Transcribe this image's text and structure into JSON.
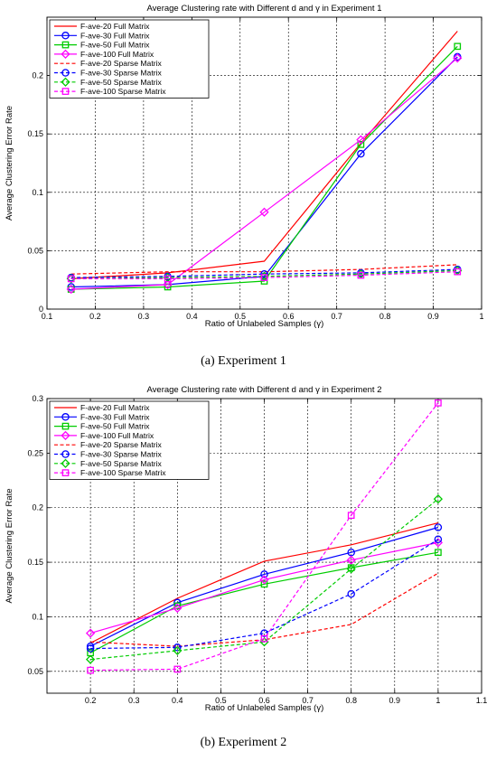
{
  "chart_data": [
    {
      "type": "line",
      "title": "Average Clustering rate with Different d and γ in Experiment 1",
      "xlabel": "Ratio of Unlabeled Samples (γ)",
      "ylabel": "Average Clustering Error Rate",
      "xlim": [
        0.1,
        1
      ],
      "ylim": [
        0,
        0.25
      ],
      "xticks": [
        0.1,
        0.2,
        0.3,
        0.4,
        0.5,
        0.6,
        0.7,
        0.8,
        0.9,
        1
      ],
      "xtick_labels": [
        "0.1",
        "0.2",
        "0.3",
        "0.4",
        "0.5",
        "0.6",
        "0.7",
        "0.8",
        "0.9",
        "1"
      ],
      "yticks": [
        0,
        0.05,
        0.1,
        0.15,
        0.2
      ],
      "ytick_labels": [
        "0",
        "0.05",
        "0.1",
        "0.15",
        "0.2"
      ],
      "grid": true,
      "legend_position": "top-left",
      "caption": "(a) Experiment 1",
      "x": [
        0.15,
        0.35,
        0.55,
        0.75,
        0.95
      ],
      "series": [
        {
          "name": "F-ave-20 Full Matrix",
          "color": "#ff0000",
          "dash": "solid",
          "marker": "none",
          "values": [
            0.026,
            0.031,
            0.041,
            0.142,
            0.238
          ]
        },
        {
          "name": "F-ave-30 Full Matrix",
          "color": "#0000ff",
          "dash": "solid",
          "marker": "circle",
          "values": [
            0.019,
            0.021,
            0.028,
            0.133,
            0.216
          ]
        },
        {
          "name": "F-ave-50  Full Matrix",
          "color": "#00cc00",
          "dash": "solid",
          "marker": "square",
          "values": [
            0.017,
            0.019,
            0.024,
            0.141,
            0.225
          ]
        },
        {
          "name": "F-ave-100 Full Matrix",
          "color": "#ff00ff",
          "dash": "solid",
          "marker": "diamond",
          "values": [
            0.017,
            0.021,
            0.083,
            0.145,
            0.215
          ]
        },
        {
          "name": "F-ave-20 Sparse Matrix",
          "color": "#ff0000",
          "dash": "dashed",
          "marker": "none",
          "values": [
            0.03,
            0.032,
            0.032,
            0.034,
            0.038
          ]
        },
        {
          "name": "F-ave-30 Sparse Matrix",
          "color": "#0000ff",
          "dash": "dashed",
          "marker": "circle",
          "values": [
            0.027,
            0.028,
            0.03,
            0.031,
            0.034
          ]
        },
        {
          "name": "F-ave-50 Sparse Matrix",
          "color": "#00cc00",
          "dash": "dashed",
          "marker": "diamond",
          "values": [
            0.026,
            0.027,
            0.028,
            0.03,
            0.033
          ]
        },
        {
          "name": "F-ave-100 Sparse Matrix",
          "color": "#ff00ff",
          "dash": "dashed",
          "marker": "square",
          "values": [
            0.026,
            0.026,
            0.027,
            0.029,
            0.032
          ]
        }
      ]
    },
    {
      "type": "line",
      "title": "Average Clustering rate with Different d and γ in Experiment 2",
      "xlabel": "Ratio of Unlabeled Samples (γ)",
      "ylabel": "Average Clustering Error Rate",
      "xlim": [
        0.1,
        1.1
      ],
      "ylim": [
        0.03,
        0.3
      ],
      "xticks": [
        0.2,
        0.3,
        0.4,
        0.5,
        0.6,
        0.7,
        0.8,
        0.9,
        1,
        1.1
      ],
      "xtick_labels": [
        "0.2",
        "0.3",
        "0.4",
        "0.5",
        "0.6",
        "0.7",
        "0.8",
        "0.9",
        "1",
        "1.1"
      ],
      "yticks": [
        0.05,
        0.1,
        0.15,
        0.2,
        0.25,
        0.3
      ],
      "ytick_labels": [
        "0.05",
        "0.1",
        "0.15",
        "0.2",
        "0.25",
        "0.3"
      ],
      "grid": true,
      "legend_position": "top-left",
      "caption": "(b) Experiment 2",
      "x": [
        0.2,
        0.4,
        0.6,
        0.8,
        1.0
      ],
      "series": [
        {
          "name": "F-ave-20 Full Matrix",
          "color": "#ff0000",
          "dash": "solid",
          "marker": "none",
          "values": [
            0.076,
            0.117,
            0.151,
            0.166,
            0.186
          ]
        },
        {
          "name": "F-ave-30 Full Matrix",
          "color": "#0000ff",
          "dash": "solid",
          "marker": "circle",
          "values": [
            0.073,
            0.113,
            0.139,
            0.159,
            0.182
          ]
        },
        {
          "name": "F-ave-50  Full Matrix",
          "color": "#00cc00",
          "dash": "solid",
          "marker": "square",
          "values": [
            0.067,
            0.11,
            0.13,
            0.145,
            0.159
          ]
        },
        {
          "name": "F-ave-100 Full Matrix",
          "color": "#ff00ff",
          "dash": "solid",
          "marker": "diamond",
          "values": [
            0.085,
            0.108,
            0.134,
            0.152,
            0.168
          ]
        },
        {
          "name": "F-ave-20 Sparse Matrix",
          "color": "#ff0000",
          "dash": "dashed",
          "marker": "none",
          "values": [
            0.077,
            0.073,
            0.079,
            0.093,
            0.14
          ]
        },
        {
          "name": "F-ave-30 Sparse Matrix",
          "color": "#0000ff",
          "dash": "dashed",
          "marker": "circle",
          "values": [
            0.071,
            0.072,
            0.085,
            0.121,
            0.171
          ]
        },
        {
          "name": "F-ave-50 Sparse Matrix",
          "color": "#00cc00",
          "dash": "dashed",
          "marker": "diamond",
          "values": [
            0.061,
            0.069,
            0.077,
            0.144,
            0.208
          ]
        },
        {
          "name": "F-ave-100 Sparse Matrix",
          "color": "#ff00ff",
          "dash": "dashed",
          "marker": "square",
          "values": [
            0.051,
            0.052,
            0.08,
            0.193,
            0.296
          ]
        }
      ]
    }
  ]
}
